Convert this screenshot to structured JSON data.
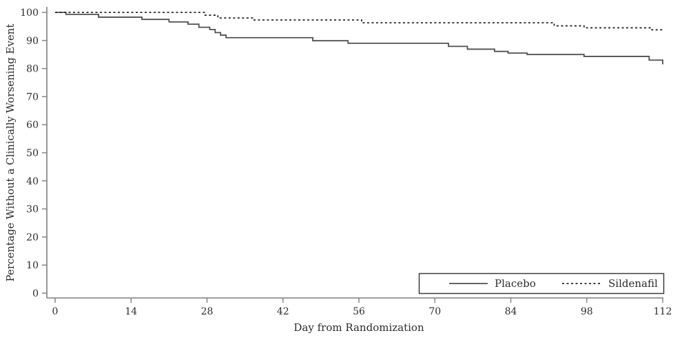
{
  "figure": {
    "background": "#ffffff",
    "axis_color": "#7d7d7d",
    "text_color": "#2b2b2b",
    "legend_border_color": "#3a3a3a"
  },
  "chart_data": {
    "type": "line",
    "subtype": "kaplan-meier-step",
    "title": "",
    "xlabel": "Day from Randomization",
    "ylabel": "Percentage Without a Clinically Worsening Event",
    "xlim": [
      0,
      112
    ],
    "ylim": [
      0,
      100
    ],
    "x_ticks": [
      0,
      14,
      28,
      42,
      56,
      70,
      84,
      98,
      112
    ],
    "y_ticks": [
      0,
      10,
      20,
      30,
      40,
      50,
      60,
      70,
      80,
      90,
      100
    ],
    "grid": false,
    "legend_position": "inside-bottom-right",
    "series": [
      {
        "name": "Placebo",
        "line_style": "solid",
        "color": "#4f4f4f",
        "points": [
          [
            0,
            100
          ],
          [
            2,
            99.3
          ],
          [
            8,
            98.3
          ],
          [
            16,
            97.5
          ],
          [
            21,
            96.6
          ],
          [
            24.5,
            95.8
          ],
          [
            26.5,
            94.7
          ],
          [
            28.5,
            93.9
          ],
          [
            29.5,
            92.8
          ],
          [
            30.5,
            91.9
          ],
          [
            31.5,
            91.0
          ],
          [
            47.5,
            89.9
          ],
          [
            54,
            89.0
          ],
          [
            72.5,
            87.9
          ],
          [
            76,
            86.9
          ],
          [
            81,
            86.1
          ],
          [
            83.5,
            85.5
          ],
          [
            87,
            85.0
          ],
          [
            97.5,
            84.3
          ],
          [
            109.5,
            83.0
          ],
          [
            112,
            81.5
          ]
        ]
      },
      {
        "name": "Sildenafil",
        "line_style": "dashed",
        "color": "#262626",
        "points": [
          [
            0,
            100
          ],
          [
            27.5,
            99.0
          ],
          [
            30,
            98.0
          ],
          [
            36.5,
            97.3
          ],
          [
            56.5,
            96.3
          ],
          [
            92,
            95.2
          ],
          [
            97.5,
            94.5
          ],
          [
            110,
            93.8
          ],
          [
            112,
            93.8
          ]
        ]
      }
    ]
  }
}
